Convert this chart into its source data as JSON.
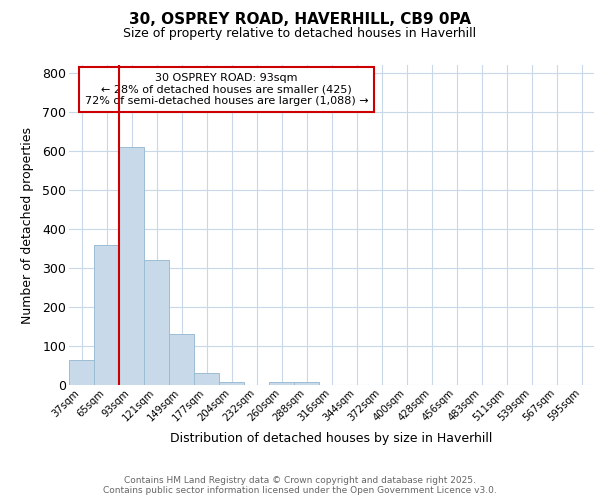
{
  "title_line1": "30, OSPREY ROAD, HAVERHILL, CB9 0PA",
  "title_line2": "Size of property relative to detached houses in Haverhill",
  "xlabel": "Distribution of detached houses by size in Haverhill",
  "ylabel": "Number of detached properties",
  "footer_line1": "Contains HM Land Registry data © Crown copyright and database right 2025.",
  "footer_line2": "Contains public sector information licensed under the Open Government Licence v3.0.",
  "annotation_line1": "30 OSPREY ROAD: 93sqm",
  "annotation_line2": "← 28% of detached houses are smaller (425)",
  "annotation_line3": "72% of semi-detached houses are larger (1,088) →",
  "bar_color": "#c8daea",
  "bar_edge_color": "#9bbdd4",
  "background_color": "#ffffff",
  "plot_bg_color": "#ffffff",
  "grid_color": "#c8d8e8",
  "red_line_color": "#cc0000",
  "annotation_box_color": "#cc0000",
  "categories": [
    "37sqm",
    "65sqm",
    "93sqm",
    "121sqm",
    "149sqm",
    "177sqm",
    "204sqm",
    "232sqm",
    "260sqm",
    "288sqm",
    "316sqm",
    "344sqm",
    "372sqm",
    "400sqm",
    "428sqm",
    "456sqm",
    "483sqm",
    "511sqm",
    "539sqm",
    "567sqm",
    "595sqm"
  ],
  "values": [
    65,
    360,
    610,
    320,
    130,
    30,
    8,
    0,
    8,
    8,
    0,
    0,
    0,
    0,
    0,
    0,
    0,
    0,
    0,
    0,
    0
  ],
  "red_line_x": 2,
  "ylim": [
    0,
    820
  ],
  "yticks": [
    0,
    100,
    200,
    300,
    400,
    500,
    600,
    700,
    800
  ]
}
